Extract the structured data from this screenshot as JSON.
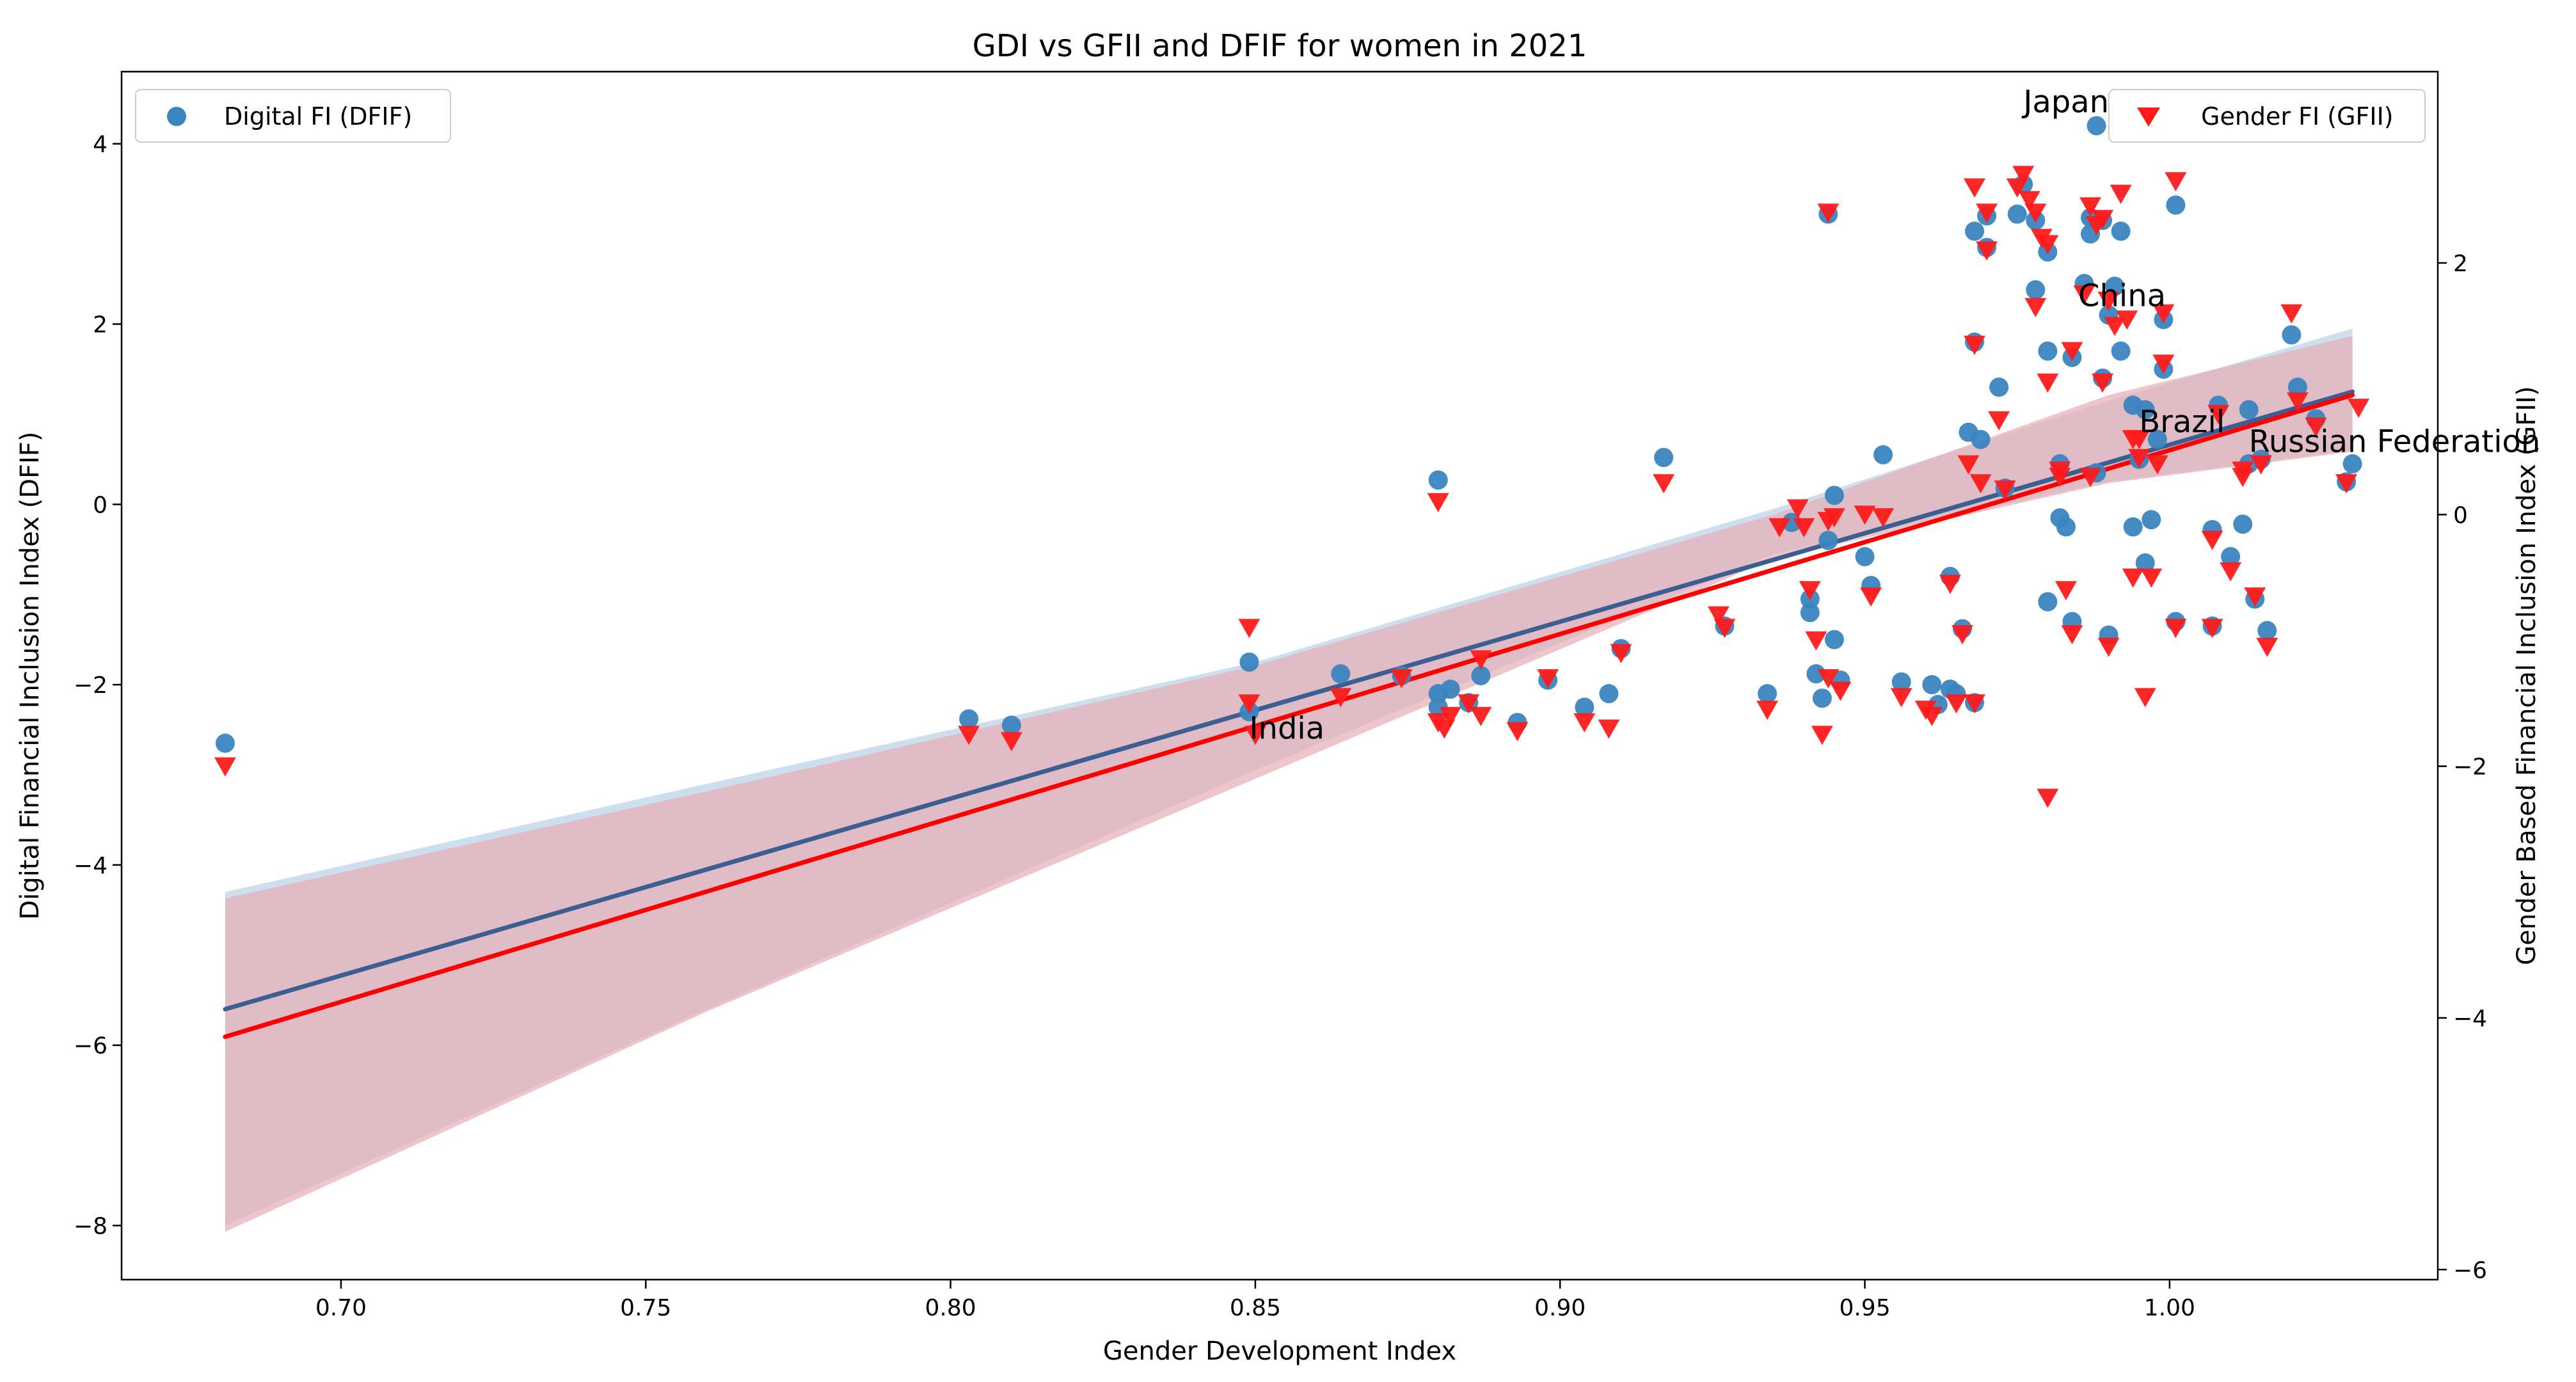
{
  "chart_data": {
    "type": "scatter",
    "title": "GDI vs GFII and DFIF for women in 2021",
    "xlabel": "Gender Development Index",
    "ylabel_left": "Digital Financial Inclusion Index (DFIF)",
    "ylabel_right": "Gender Based Financial Inclusion Index (GFII)",
    "xlim": [
      0.664,
      1.044
    ],
    "ylim_left": [
      -8.6,
      4.8
    ],
    "ylim_right": [
      -6.08,
      3.52
    ],
    "xticks": [
      0.7,
      0.75,
      0.8,
      0.85,
      0.9,
      0.95,
      1.0
    ],
    "xtick_labels": [
      "0.70",
      "0.75",
      "0.80",
      "0.85",
      "0.90",
      "0.95",
      "1.00"
    ],
    "yticks_left": [
      -8,
      -6,
      -4,
      -2,
      0,
      2,
      4
    ],
    "ytick_labels_left": [
      "−8",
      "−6",
      "−4",
      "−2",
      "0",
      "2",
      "4"
    ],
    "yticks_right": [
      -6,
      -4,
      -2,
      0,
      2
    ],
    "ytick_labels_right": [
      "−6",
      "−4",
      "−2",
      "0",
      "2"
    ],
    "colors": {
      "dfif": "#3a84c0",
      "gfii": "#ff1a1a",
      "dfif_line": "#3b5f93",
      "gfii_line": "#ff0000",
      "dfif_band": "#c4d8ec",
      "gfii_band": "#e8aeb6"
    },
    "series": [
      {
        "name": "Digital FI (DFIF)",
        "axis": "left",
        "marker": "circle",
        "points": [
          [
            0.681,
            -2.65
          ],
          [
            0.803,
            -2.38
          ],
          [
            0.81,
            -2.45
          ],
          [
            0.849,
            -1.75
          ],
          [
            0.849,
            -2.3
          ],
          [
            0.864,
            -1.88
          ],
          [
            0.874,
            -1.9
          ],
          [
            0.88,
            0.27
          ],
          [
            0.88,
            -2.1
          ],
          [
            0.88,
            -2.25
          ],
          [
            0.882,
            -2.05
          ],
          [
            0.885,
            -2.2
          ],
          [
            0.887,
            -1.9
          ],
          [
            0.893,
            -2.42
          ],
          [
            0.898,
            -1.95
          ],
          [
            0.904,
            -2.25
          ],
          [
            0.908,
            -2.1
          ],
          [
            0.91,
            -1.6
          ],
          [
            0.917,
            0.52
          ],
          [
            0.927,
            -1.35
          ],
          [
            0.934,
            -2.1
          ],
          [
            0.938,
            -0.2
          ],
          [
            0.941,
            -1.05
          ],
          [
            0.941,
            -1.2
          ],
          [
            0.942,
            -1.88
          ],
          [
            0.943,
            -2.15
          ],
          [
            0.944,
            3.22
          ],
          [
            0.944,
            -0.4
          ],
          [
            0.945,
            0.1
          ],
          [
            0.945,
            -1.5
          ],
          [
            0.946,
            -1.95
          ],
          [
            0.95,
            -0.58
          ],
          [
            0.951,
            -0.9
          ],
          [
            0.953,
            0.55
          ],
          [
            0.956,
            -1.97
          ],
          [
            0.961,
            -2.0
          ],
          [
            0.962,
            -2.22
          ],
          [
            0.964,
            -2.05
          ],
          [
            0.964,
            -0.8
          ],
          [
            0.965,
            -2.1
          ],
          [
            0.966,
            -1.38
          ],
          [
            0.967,
            0.8
          ],
          [
            0.968,
            3.03
          ],
          [
            0.968,
            1.8
          ],
          [
            0.968,
            -2.2
          ],
          [
            0.969,
            0.72
          ],
          [
            0.97,
            3.2
          ],
          [
            0.97,
            2.85
          ],
          [
            0.972,
            1.3
          ],
          [
            0.973,
            0.18
          ],
          [
            0.975,
            3.22
          ],
          [
            0.976,
            3.55
          ],
          [
            0.978,
            3.15
          ],
          [
            0.978,
            2.38
          ],
          [
            0.98,
            2.8
          ],
          [
            0.98,
            1.7
          ],
          [
            0.98,
            -1.08
          ],
          [
            0.982,
            -0.15
          ],
          [
            0.982,
            0.45
          ],
          [
            0.983,
            -0.25
          ],
          [
            0.984,
            1.63
          ],
          [
            0.984,
            -1.3
          ],
          [
            0.986,
            2.45
          ],
          [
            0.987,
            3.18
          ],
          [
            0.987,
            3.0
          ],
          [
            0.988,
            4.2
          ],
          [
            0.988,
            0.35
          ],
          [
            0.989,
            3.15
          ],
          [
            0.989,
            1.4
          ],
          [
            0.99,
            2.1
          ],
          [
            0.99,
            -1.45
          ],
          [
            0.991,
            2.42
          ],
          [
            0.992,
            3.03
          ],
          [
            0.992,
            1.7
          ],
          [
            0.994,
            1.1
          ],
          [
            0.994,
            -0.25
          ],
          [
            0.995,
            0.5
          ],
          [
            0.996,
            1.05
          ],
          [
            0.996,
            -0.65
          ],
          [
            0.997,
            -0.17
          ],
          [
            0.998,
            0.72
          ],
          [
            0.999,
            2.05
          ],
          [
            0.999,
            1.5
          ],
          [
            1.001,
            3.32
          ],
          [
            1.001,
            -1.3
          ],
          [
            1.007,
            -0.28
          ],
          [
            1.007,
            -1.35
          ],
          [
            1.008,
            1.1
          ],
          [
            1.01,
            -0.58
          ],
          [
            1.012,
            -0.22
          ],
          [
            1.013,
            1.05
          ],
          [
            1.013,
            0.45
          ],
          [
            1.014,
            -1.05
          ],
          [
            1.015,
            0.5
          ],
          [
            1.016,
            -1.4
          ],
          [
            1.02,
            1.88
          ],
          [
            1.021,
            1.3
          ],
          [
            1.024,
            0.95
          ],
          [
            1.029,
            0.25
          ],
          [
            1.03,
            0.45
          ]
        ]
      },
      {
        "name": "Gender FI (GFII)",
        "axis": "right",
        "marker": "triangle_down",
        "points": [
          [
            0.681,
            -2.0
          ],
          [
            0.803,
            -1.75
          ],
          [
            0.81,
            -1.8
          ],
          [
            0.849,
            -0.9
          ],
          [
            0.849,
            -1.5
          ],
          [
            0.85,
            -1.75
          ],
          [
            0.864,
            -1.45
          ],
          [
            0.874,
            -1.3
          ],
          [
            0.88,
            0.1
          ],
          [
            0.88,
            -1.65
          ],
          [
            0.881,
            -1.7
          ],
          [
            0.882,
            -1.6
          ],
          [
            0.885,
            -1.5
          ],
          [
            0.887,
            -1.6
          ],
          [
            0.887,
            -1.15
          ],
          [
            0.893,
            -1.72
          ],
          [
            0.898,
            -1.3
          ],
          [
            0.904,
            -1.65
          ],
          [
            0.908,
            -1.7
          ],
          [
            0.91,
            -1.1
          ],
          [
            0.917,
            0.25
          ],
          [
            0.926,
            -0.8
          ],
          [
            0.927,
            -0.9
          ],
          [
            0.934,
            -1.55
          ],
          [
            0.936,
            -0.1
          ],
          [
            0.939,
            0.05
          ],
          [
            0.94,
            -0.1
          ],
          [
            0.941,
            -0.6
          ],
          [
            0.942,
            -1.0
          ],
          [
            0.943,
            -1.75
          ],
          [
            0.944,
            2.4
          ],
          [
            0.944,
            -0.05
          ],
          [
            0.944,
            -1.3
          ],
          [
            0.945,
            -0.02
          ],
          [
            0.946,
            -1.4
          ],
          [
            0.95,
            0.0
          ],
          [
            0.951,
            -0.65
          ],
          [
            0.953,
            -0.02
          ],
          [
            0.956,
            -1.45
          ],
          [
            0.96,
            -1.55
          ],
          [
            0.961,
            -1.6
          ],
          [
            0.964,
            -0.55
          ],
          [
            0.965,
            -1.5
          ],
          [
            0.966,
            -0.95
          ],
          [
            0.967,
            0.4
          ],
          [
            0.968,
            2.6
          ],
          [
            0.968,
            1.35
          ],
          [
            0.968,
            -1.5
          ],
          [
            0.969,
            0.25
          ],
          [
            0.97,
            2.4
          ],
          [
            0.97,
            2.1
          ],
          [
            0.972,
            0.75
          ],
          [
            0.973,
            0.2
          ],
          [
            0.975,
            2.6
          ],
          [
            0.976,
            2.7
          ],
          [
            0.977,
            2.5
          ],
          [
            0.978,
            1.65
          ],
          [
            0.978,
            2.4
          ],
          [
            0.979,
            2.2
          ],
          [
            0.98,
            2.15
          ],
          [
            0.98,
            1.05
          ],
          [
            0.98,
            -2.25
          ],
          [
            0.982,
            0.3
          ],
          [
            0.982,
            0.35
          ],
          [
            0.983,
            -0.6
          ],
          [
            0.984,
            1.3
          ],
          [
            0.984,
            -0.95
          ],
          [
            0.986,
            1.75
          ],
          [
            0.987,
            2.45
          ],
          [
            0.987,
            0.3
          ],
          [
            0.988,
            2.3
          ],
          [
            0.989,
            2.35
          ],
          [
            0.989,
            1.05
          ],
          [
            0.99,
            1.7
          ],
          [
            0.99,
            -1.05
          ],
          [
            0.991,
            1.5
          ],
          [
            0.992,
            2.55
          ],
          [
            0.993,
            1.55
          ],
          [
            0.994,
            0.6
          ],
          [
            0.994,
            -0.5
          ],
          [
            0.995,
            0.45
          ],
          [
            0.995,
            0.6
          ],
          [
            0.996,
            -1.45
          ],
          [
            0.997,
            -0.5
          ],
          [
            0.998,
            0.4
          ],
          [
            0.999,
            1.6
          ],
          [
            0.999,
            1.2
          ],
          [
            1.001,
            2.65
          ],
          [
            1.001,
            -0.9
          ],
          [
            1.007,
            -0.2
          ],
          [
            1.007,
            -0.9
          ],
          [
            1.008,
            0.8
          ],
          [
            1.01,
            -0.45
          ],
          [
            1.012,
            0.3
          ],
          [
            1.012,
            0.35
          ],
          [
            1.014,
            -0.65
          ],
          [
            1.015,
            0.4
          ],
          [
            1.016,
            -1.05
          ],
          [
            1.02,
            1.6
          ],
          [
            1.021,
            0.9
          ],
          [
            1.024,
            0.7
          ],
          [
            1.029,
            0.25
          ],
          [
            1.031,
            0.85
          ]
        ]
      }
    ],
    "regression": [
      {
        "name": "DFIF fit",
        "axis": "left",
        "start": [
          0.681,
          -5.6
        ],
        "end": [
          1.03,
          1.25
        ],
        "ci_band": [
          [
            0.681,
            -8.0,
            -4.3
          ],
          [
            0.76,
            -5.6,
            -3.1
          ],
          [
            0.85,
            -2.95,
            -1.75
          ],
          [
            0.935,
            -0.55,
            -0.05
          ],
          [
            0.99,
            0.25,
            1.15
          ],
          [
            1.03,
            0.6,
            1.95
          ]
        ]
      },
      {
        "name": "GFII fit",
        "axis": "right",
        "start": [
          0.681,
          -4.15
        ],
        "end": [
          1.03,
          0.95
        ],
        "ci_band": [
          [
            0.681,
            -5.7,
            -3.05
          ],
          [
            0.76,
            -3.95,
            -2.2
          ],
          [
            0.85,
            -2.1,
            -1.2
          ],
          [
            0.935,
            -0.35,
            0.0
          ],
          [
            0.99,
            0.25,
            0.95
          ],
          [
            1.03,
            0.5,
            1.42
          ]
        ]
      }
    ],
    "annotations": [
      {
        "text": "Japan",
        "x": 0.976,
        "y": 4.35,
        "axis": "left"
      },
      {
        "text": "China",
        "x": 0.985,
        "y": 2.2,
        "axis": "left"
      },
      {
        "text": "Brazil",
        "x": 0.995,
        "y": 0.8,
        "axis": "left"
      },
      {
        "text": "Russian Federation",
        "x": 1.013,
        "y": 0.58,
        "axis": "left"
      },
      {
        "text": "India",
        "x": 0.849,
        "y": -2.6,
        "axis": "left"
      }
    ],
    "legends": [
      {
        "label": "Digital FI (DFIF)",
        "position": "upper-left"
      },
      {
        "label": "Gender FI (GFII)",
        "position": "upper-right"
      }
    ]
  }
}
